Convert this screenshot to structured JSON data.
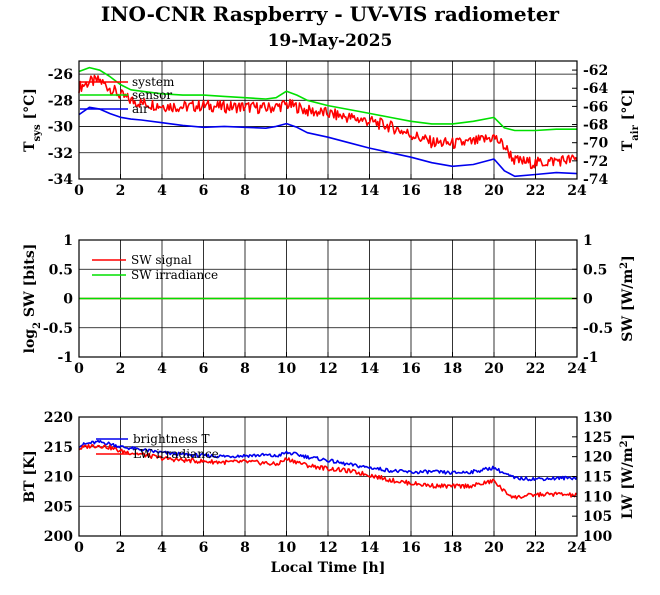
{
  "title": "INO-CNR Raspberry - UV-VIS radiometer",
  "subtitle": "19-May-2025",
  "xlabel": "Local Time [h]",
  "colors": {
    "red": "#ff0000",
    "green": "#00e000",
    "blue": "#0000ee",
    "grid": "#000000"
  },
  "chart_data": [
    {
      "type": "line",
      "panel": "temperature",
      "ylabel_left": "T_sys [°C]",
      "ylabel_right": "T_air [°C]",
      "xlim": [
        0,
        24
      ],
      "ylim_left": [
        -34,
        -25
      ],
      "ylim_right": [
        -74,
        -61
      ],
      "xticks": [
        0,
        2,
        4,
        6,
        8,
        10,
        12,
        14,
        16,
        18,
        20,
        22,
        24
      ],
      "yticks_left": [
        -34,
        -32,
        -30,
        -28,
        -26
      ],
      "yticks_right": [
        -74,
        -72,
        -70,
        -68,
        -66,
        -64,
        -62
      ],
      "grid": true,
      "legend_placement": "top-left",
      "series": [
        {
          "name": "system",
          "axis": "left",
          "color": "#ff0000",
          "noisy": true,
          "x": [
            0,
            0.5,
            1,
            1.5,
            2,
            2.5,
            3,
            4,
            5,
            6,
            7,
            8,
            9,
            9.5,
            10,
            10.5,
            11,
            12,
            13,
            14,
            15,
            16,
            17,
            18,
            19,
            20,
            20.5,
            21,
            22,
            23,
            24
          ],
          "y": [
            -27.0,
            -26.6,
            -26.5,
            -27.1,
            -27.6,
            -28.0,
            -28.2,
            -28.4,
            -28.5,
            -28.4,
            -28.5,
            -28.5,
            -28.6,
            -28.5,
            -28.3,
            -28.5,
            -28.8,
            -29.0,
            -29.3,
            -29.6,
            -30.0,
            -30.6,
            -31.2,
            -31.3,
            -31.2,
            -30.8,
            -31.5,
            -32.6,
            -32.8,
            -32.6,
            -32.5
          ]
        },
        {
          "name": "sensor",
          "axis": "left",
          "color": "#00e000",
          "noisy": false,
          "x": [
            0,
            0.5,
            1,
            1.5,
            2,
            2.5,
            3,
            4,
            5,
            6,
            7,
            8,
            9,
            9.5,
            10,
            10.5,
            11,
            12,
            13,
            14,
            15,
            16,
            17,
            18,
            19,
            20,
            20.5,
            21,
            22,
            23,
            24
          ],
          "y": [
            -25.8,
            -25.5,
            -25.7,
            -26.2,
            -26.8,
            -27.2,
            -27.3,
            -27.5,
            -27.6,
            -27.6,
            -27.7,
            -27.8,
            -27.9,
            -27.8,
            -27.3,
            -27.6,
            -28.0,
            -28.4,
            -28.7,
            -29.0,
            -29.3,
            -29.6,
            -29.8,
            -29.8,
            -29.6,
            -29.3,
            -30.1,
            -30.3,
            -30.3,
            -30.2,
            -30.2
          ]
        },
        {
          "name": "air",
          "axis": "right",
          "color": "#0000ee",
          "noisy": false,
          "x": [
            0,
            0.5,
            1,
            1.5,
            2,
            2.5,
            3,
            4,
            5,
            6,
            7,
            8,
            9,
            9.5,
            10,
            10.5,
            11,
            12,
            13,
            14,
            15,
            16,
            17,
            18,
            19,
            20,
            20.5,
            21,
            22,
            23,
            24
          ],
          "y": [
            -66.9,
            -66.1,
            -66.3,
            -66.8,
            -67.2,
            -67.4,
            -67.5,
            -67.8,
            -68.1,
            -68.3,
            -68.2,
            -68.3,
            -68.4,
            -68.2,
            -67.9,
            -68.3,
            -68.9,
            -69.4,
            -70.0,
            -70.6,
            -71.1,
            -71.6,
            -72.2,
            -72.6,
            -72.4,
            -71.8,
            -73.1,
            -73.7,
            -73.5,
            -73.3,
            -73.4
          ]
        }
      ]
    },
    {
      "type": "line",
      "panel": "shortwave",
      "ylabel_left": "log2 SW [bits]",
      "ylabel_right": "SW [W/m2]",
      "xlim": [
        0,
        24
      ],
      "ylim_left": [
        -1,
        1
      ],
      "ylim_right": [
        -1,
        1
      ],
      "xticks": [
        0,
        2,
        4,
        6,
        8,
        10,
        12,
        14,
        16,
        18,
        20,
        22,
        24
      ],
      "yticks_left": [
        -1,
        -0.5,
        0,
        0.5,
        1
      ],
      "yticks_right": [
        -1,
        -0.5,
        0,
        0.5,
        1
      ],
      "grid": true,
      "legend_placement": "top-left",
      "series": [
        {
          "name": "SW signal",
          "axis": "left",
          "color": "#ff0000",
          "noisy": false,
          "x": [
            0,
            24
          ],
          "y": [
            0,
            0
          ]
        },
        {
          "name": "SW irradiance",
          "axis": "right",
          "color": "#00e000",
          "noisy": false,
          "x": [
            0,
            24
          ],
          "y": [
            0,
            0
          ]
        }
      ]
    },
    {
      "type": "line",
      "panel": "longwave",
      "ylabel_left": "BT [K]",
      "ylabel_right": "LW [W/m2]",
      "xlim": [
        0,
        24
      ],
      "ylim_left": [
        200,
        220
      ],
      "ylim_right": [
        100,
        130
      ],
      "xticks": [
        0,
        2,
        4,
        6,
        8,
        10,
        12,
        14,
        16,
        18,
        20,
        22,
        24
      ],
      "yticks_left": [
        200,
        205,
        210,
        215,
        220
      ],
      "yticks_right": [
        100,
        105,
        110,
        115,
        120,
        125,
        130
      ],
      "grid": true,
      "legend_placement": "top-left",
      "series": [
        {
          "name": "brightness T",
          "axis": "left",
          "color": "#0000ee",
          "noisy": true,
          "x": [
            0,
            0.5,
            1,
            1.5,
            2,
            3,
            4,
            5,
            6,
            7,
            8,
            9,
            9.5,
            10,
            10.5,
            11,
            12,
            13,
            14,
            15,
            16,
            17,
            18,
            19,
            20,
            20.5,
            21,
            22,
            23,
            24
          ],
          "y": [
            215.2,
            215.6,
            215.8,
            215.5,
            215.0,
            214.5,
            214.0,
            213.7,
            213.5,
            213.4,
            213.5,
            213.6,
            213.4,
            214.0,
            213.7,
            213.3,
            212.7,
            212.0,
            211.5,
            211.0,
            210.7,
            210.8,
            210.6,
            210.8,
            211.5,
            210.5,
            209.7,
            209.6,
            209.7,
            209.8
          ]
        },
        {
          "name": "LW irradiance",
          "axis": "right",
          "color": "#ff0000",
          "noisy": true,
          "x": [
            0,
            0.5,
            1,
            1.5,
            2,
            3,
            4,
            5,
            6,
            7,
            8,
            9,
            9.5,
            10,
            10.5,
            11,
            12,
            13,
            14,
            15,
            16,
            17,
            18,
            19,
            20,
            20.5,
            21,
            22,
            23,
            24
          ],
          "y": [
            122.0,
            122.7,
            122.8,
            122.3,
            121.4,
            120.6,
            119.6,
            119.1,
            118.8,
            118.6,
            118.7,
            118.4,
            118.0,
            119.4,
            118.7,
            117.8,
            117.0,
            116.4,
            115.4,
            114.1,
            113.3,
            112.7,
            112.5,
            112.7,
            113.9,
            111.2,
            109.7,
            110.4,
            110.6,
            110.2
          ]
        }
      ]
    }
  ]
}
